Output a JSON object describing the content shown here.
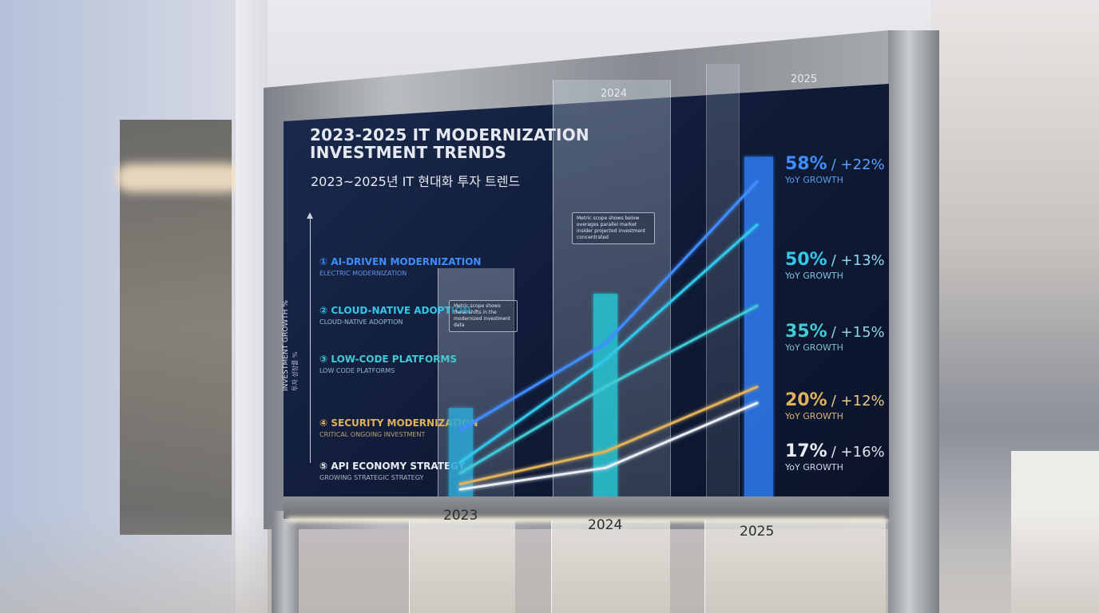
{
  "title_line1": "2023-2025 IT MODERNIZATION",
  "title_line2": "INVESTMENT TRENDS",
  "subtitle": "2023~2025년 IT 현대화 투자 트렌드",
  "y_axis_label": "INVESTMENT GROWTH %",
  "y_axis_label_ko": "투자 성장률 %",
  "categories": [
    {
      "num": "①",
      "name": "AI-DRIVEN MODERNIZATION",
      "sub": "ELECTRIC MODERNIZATION",
      "color": "#3f8dff"
    },
    {
      "num": "②",
      "name": "CLOUD-NATIVE ADOPTION",
      "sub": "CLOUD-NATIVE ADOPTION",
      "color": "#33c7ea"
    },
    {
      "num": "③",
      "name": "LOW-CODE PLATFORMS",
      "sub": "LOW CODE PLATFORMS",
      "color": "#42c9d6"
    },
    {
      "num": "④",
      "name": "SECURITY MODERNIZATION",
      "sub": "CRITICAL ONGOING INVESTMENT",
      "color": "#e1b25c"
    },
    {
      "num": "⑤",
      "name": "API ECONOMY STRATEGY",
      "sub": "GROWING STRATEGIC STRATEGY",
      "color": "#e9edf3"
    }
  ],
  "years_top": [
    "2024",
    "2025"
  ],
  "years_bottom": [
    "2023",
    "2024",
    "2025"
  ],
  "stats": [
    {
      "value": "58%",
      "change": "/ +22%",
      "label": "YoY GROWTH",
      "color": "#3f8dff"
    },
    {
      "value": "50%",
      "change": "/ +13%",
      "label": "YoY GROWTH",
      "color": "#33c7ea"
    },
    {
      "value": "35%",
      "change": "/ +15%",
      "label": "YoY GROWTH",
      "color": "#42c9d6"
    },
    {
      "value": "20%",
      "change": "/ +12%",
      "label": "YoY GROWTH",
      "color": "#e1b25c"
    },
    {
      "value": "17%",
      "change": "/ +16%",
      "label": "YoY GROWTH",
      "color": "#e9edf3"
    }
  ],
  "note_left": "Metric scope shows these shifts in the modernized investment data",
  "note_right": "Metric scope shows below overages parallel market insider projected investment concentrated",
  "chart_data": {
    "type": "line",
    "x": [
      "2023",
      "2024",
      "2025"
    ],
    "series": [
      {
        "name": "AI-DRIVEN MODERNIZATION",
        "values": [
          12,
          28,
          58
        ],
        "color": "#3f8dff"
      },
      {
        "name": "CLOUD-NATIVE ADOPTION",
        "values": [
          6,
          25,
          50
        ],
        "color": "#33c7ea"
      },
      {
        "name": "LOW-CODE PLATFORMS",
        "values": [
          4,
          20,
          35
        ],
        "color": "#42c9d6"
      },
      {
        "name": "SECURITY MODERNIZATION",
        "values": [
          2,
          8,
          20
        ],
        "color": "#e1b25c"
      },
      {
        "name": "API ECONOMY STRATEGY",
        "values": [
          1,
          5,
          17
        ],
        "color": "#e9edf3"
      }
    ],
    "bars": [
      {
        "x": "2023",
        "value": 18,
        "color": "#2fa8d8"
      },
      {
        "x": "2024",
        "value": 38,
        "color": "#28c6d4"
      },
      {
        "x": "2025",
        "value": 62,
        "color": "#2f7cf2"
      }
    ],
    "ylim": [
      0,
      65
    ],
    "grid": false,
    "legend": "left"
  }
}
